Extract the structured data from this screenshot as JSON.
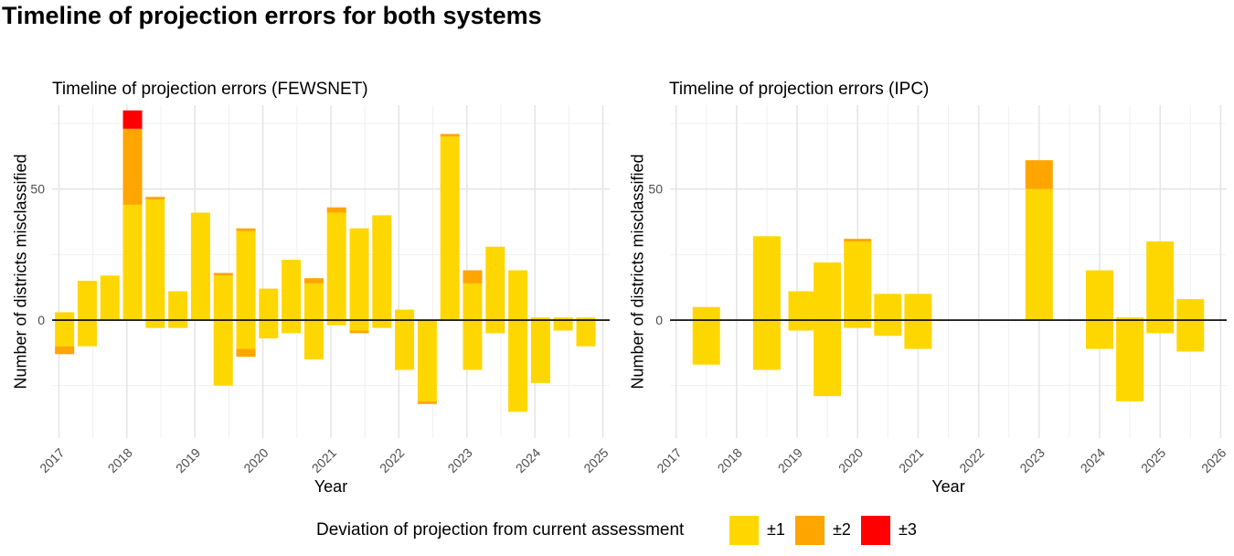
{
  "title": "Timeline of projection errors for both systems",
  "legend": {
    "title": "Deviation of projection from current assessment",
    "items": [
      {
        "label": "±1",
        "color": "#FFD700"
      },
      {
        "label": "±2",
        "color": "#FFA500"
      },
      {
        "label": "±3",
        "color": "#FF0000"
      }
    ]
  },
  "colors": {
    "pm1": "#FFD700",
    "pm2": "#FFA500",
    "pm3": "#FF0000"
  },
  "chart_data": [
    {
      "type": "bar",
      "title": "Timeline of projection errors (FEWSNET)",
      "xlabel": "Year",
      "ylabel": "Number of districts misclassified",
      "ylim": [
        -45,
        82
      ],
      "xlim": [
        2016.9,
        2025.1
      ],
      "yticks": [
        0,
        50
      ],
      "xticks": [
        "2017",
        "2018",
        "2019",
        "2020",
        "2021",
        "2022",
        "2023",
        "2024",
        "2025"
      ],
      "grid": true,
      "bars": [
        {
          "x": "2017-02",
          "pos": {
            "pm1": 3
          },
          "neg": {
            "pm1": -10,
            "pm2": -3
          }
        },
        {
          "x": "2017-06",
          "pos": {
            "pm1": 15
          },
          "neg": {
            "pm1": -10
          }
        },
        {
          "x": "2017-10",
          "pos": {
            "pm1": 17
          },
          "neg": {}
        },
        {
          "x": "2018-02",
          "pos": {
            "pm1": 44,
            "pm2": 29,
            "pm3": 7
          },
          "neg": {}
        },
        {
          "x": "2018-06",
          "pos": {
            "pm1": 46,
            "pm2": 1
          },
          "neg": {
            "pm1": -3
          }
        },
        {
          "x": "2018-10",
          "pos": {
            "pm1": 11
          },
          "neg": {
            "pm1": -3
          }
        },
        {
          "x": "2019-02",
          "pos": {
            "pm1": 41
          },
          "neg": {}
        },
        {
          "x": "2019-06",
          "pos": {
            "pm1": 17,
            "pm2": 1
          },
          "neg": {
            "pm1": -25
          }
        },
        {
          "x": "2019-10",
          "pos": {
            "pm1": 34,
            "pm2": 1
          },
          "neg": {
            "pm1": -11,
            "pm2": -3
          }
        },
        {
          "x": "2020-02",
          "pos": {
            "pm1": 12
          },
          "neg": {
            "pm1": -7
          }
        },
        {
          "x": "2020-06",
          "pos": {
            "pm1": 23
          },
          "neg": {
            "pm1": -5
          }
        },
        {
          "x": "2020-10",
          "pos": {
            "pm1": 14,
            "pm2": 2
          },
          "neg": {
            "pm1": -15
          }
        },
        {
          "x": "2021-02",
          "pos": {
            "pm1": 41,
            "pm2": 2
          },
          "neg": {
            "pm1": -2
          }
        },
        {
          "x": "2021-06",
          "pos": {
            "pm1": 35
          },
          "neg": {
            "pm1": -4,
            "pm2": -1
          }
        },
        {
          "x": "2021-10",
          "pos": {
            "pm1": 40
          },
          "neg": {
            "pm1": -3
          }
        },
        {
          "x": "2022-02",
          "pos": {
            "pm1": 4
          },
          "neg": {
            "pm1": -19
          }
        },
        {
          "x": "2022-06",
          "pos": {},
          "neg": {
            "pm1": -31,
            "pm2": -1
          }
        },
        {
          "x": "2022-10",
          "pos": {
            "pm1": 70,
            "pm2": 1
          },
          "neg": {}
        },
        {
          "x": "2023-02",
          "pos": {
            "pm1": 14,
            "pm2": 5
          },
          "neg": {
            "pm1": -19
          }
        },
        {
          "x": "2023-06",
          "pos": {
            "pm1": 28
          },
          "neg": {
            "pm1": -5
          }
        },
        {
          "x": "2023-10",
          "pos": {
            "pm1": 19
          },
          "neg": {
            "pm1": -35
          }
        },
        {
          "x": "2024-02",
          "pos": {
            "pm1": 1
          },
          "neg": {
            "pm1": -24
          }
        },
        {
          "x": "2024-06",
          "pos": {
            "pm1": 1
          },
          "neg": {
            "pm1": -4
          }
        },
        {
          "x": "2024-10",
          "pos": {
            "pm1": 1
          },
          "neg": {
            "pm1": -10
          }
        }
      ]
    },
    {
      "type": "bar",
      "title": "Timeline of projection errors (IPC)",
      "xlabel": "Year",
      "ylabel": "Number of districts misclassified",
      "ylim": [
        -45,
        82
      ],
      "xlim": [
        2016.9,
        2026.1
      ],
      "yticks": [
        0,
        50
      ],
      "xticks": [
        "2017",
        "2018",
        "2019",
        "2020",
        "2021",
        "2022",
        "2023",
        "2024",
        "2025",
        "2026"
      ],
      "grid": true,
      "bars": [
        {
          "x": "2017-07",
          "pos": {
            "pm1": 5
          },
          "neg": {
            "pm1": -17
          }
        },
        {
          "x": "2018-07",
          "pos": {
            "pm1": 32
          },
          "neg": {
            "pm1": -19
          }
        },
        {
          "x": "2019-02",
          "pos": {
            "pm1": 11
          },
          "neg": {
            "pm1": -4
          }
        },
        {
          "x": "2019-07",
          "pos": {
            "pm1": 22
          },
          "neg": {
            "pm1": -29
          }
        },
        {
          "x": "2020-01",
          "pos": {
            "pm1": 30,
            "pm2": 1
          },
          "neg": {
            "pm1": -3
          }
        },
        {
          "x": "2020-07",
          "pos": {
            "pm1": 10
          },
          "neg": {
            "pm1": -6
          }
        },
        {
          "x": "2021-01",
          "pos": {
            "pm1": 10
          },
          "neg": {
            "pm1": -11
          }
        },
        {
          "x": "2023-01",
          "pos": {
            "pm1": 50,
            "pm2": 11
          },
          "neg": {}
        },
        {
          "x": "2024-01",
          "pos": {
            "pm1": 19
          },
          "neg": {
            "pm1": -11
          }
        },
        {
          "x": "2024-07",
          "pos": {
            "pm1": 1
          },
          "neg": {
            "pm1": -31
          }
        },
        {
          "x": "2025-01",
          "pos": {
            "pm1": 30
          },
          "neg": {
            "pm1": -5
          }
        },
        {
          "x": "2025-07",
          "pos": {
            "pm1": 8
          },
          "neg": {
            "pm1": -12
          }
        }
      ]
    }
  ]
}
